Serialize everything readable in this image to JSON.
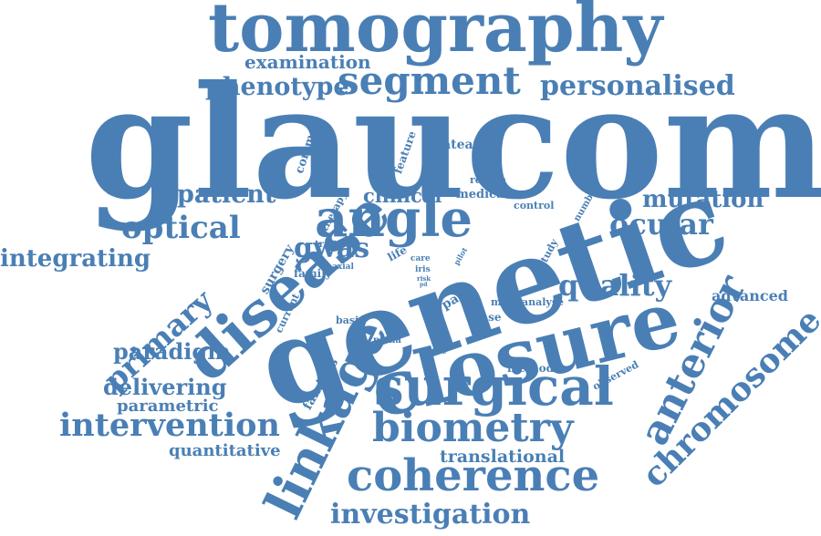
{
  "color": "#4a7fb5",
  "words": {
    "glaucoma": "glaucoma",
    "genetic": "genetic",
    "tomography": "tomography",
    "closure": "closure",
    "disease": "disease",
    "angle": "angle",
    "surgical": "surgical",
    "coherence": "coherence",
    "segment": "segment",
    "linkage": "linkage",
    "biometry": "biometry",
    "intervention": "intervention",
    "anterior": "anterior",
    "chromosome": "chromosome",
    "optical": "optical",
    "primary": "primary",
    "personalised": "personalised",
    "phenotype": "phenotype",
    "investigation": "investigation",
    "ocular": "ocular",
    "mutation": "mutation",
    "quality": "quality",
    "patient": "patient",
    "examination": "examination",
    "integrating": "integrating",
    "paradigm": "paradigm",
    "delivering": "delivering",
    "clinical": "clinical",
    "gwas": "gwas",
    "translational": "translational",
    "quantitative": "quantitative",
    "parametric": "parametric",
    "advanced": "advanced",
    "families": "families",
    "surgery": "surgery",
    "common": "common",
    "plateau": "plateau",
    "feature": "feature",
    "therapy": "therapy",
    "medical": "medical",
    "region": "region",
    "control": "control",
    "number": "number",
    "study": "study",
    "trait": "trait",
    "life": "life",
    "family": "family",
    "axial": "axial",
    "care": "care",
    "iris": "iris",
    "risk": "risk",
    "pilot": "pilot",
    "pacg": "pacg",
    "current": "current",
    "more": "more",
    "analyse": "analyse",
    "basis": "basis",
    "case": "case",
    "plana": "plana",
    "score": "score",
    "method": "method",
    "observed": "observed",
    "pd": "pd"
  }
}
